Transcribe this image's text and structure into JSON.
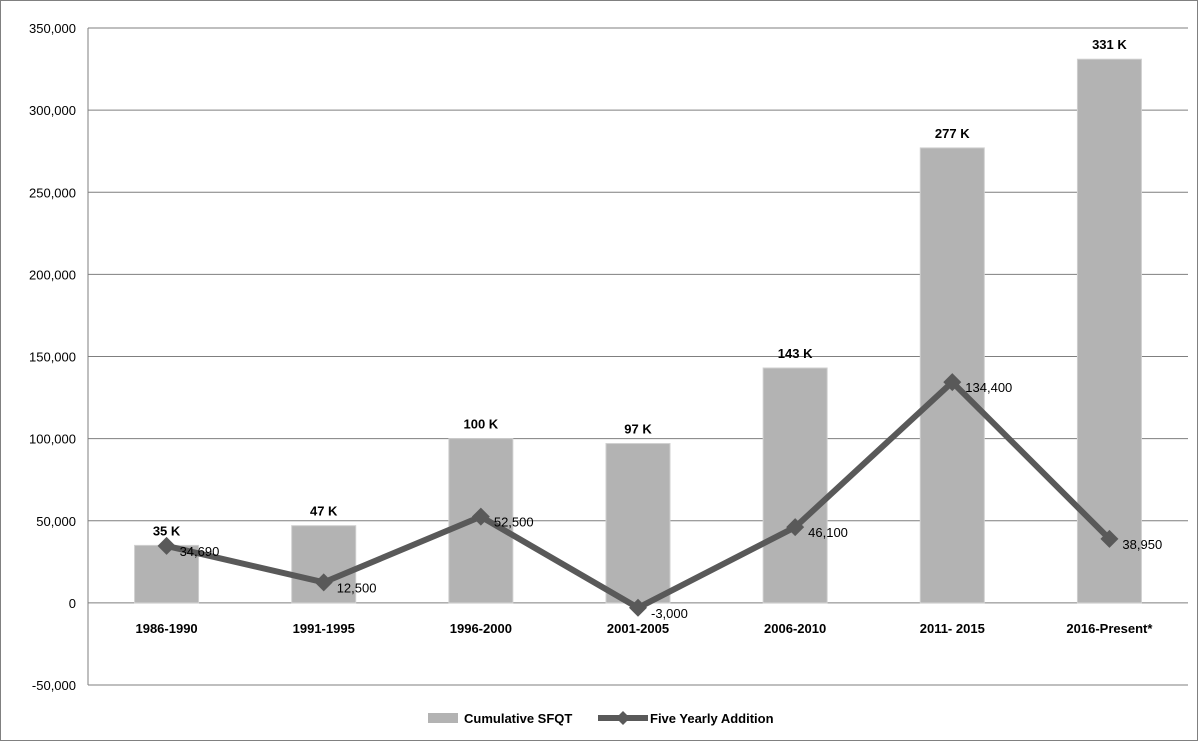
{
  "chart_data": {
    "type": "bar",
    "categories": [
      "1986-1990",
      "1991-1995",
      "1996-2000",
      "2001-2005",
      "2006-2010",
      "2011- 2015",
      "2016-Present*"
    ],
    "series": [
      {
        "name": "Cumulative SFQT",
        "type": "bar",
        "values": [
          35000,
          47000,
          100000,
          97000,
          143000,
          277000,
          331000
        ],
        "labels": [
          "35 K",
          "47 K",
          "100 K",
          "97 K",
          "143 K",
          "277 K",
          "331 K"
        ],
        "color": "#b3b3b3"
      },
      {
        "name": "Five Yearly Addition",
        "type": "line",
        "values": [
          34690,
          12500,
          52500,
          -3000,
          46100,
          134400,
          38950
        ],
        "labels": [
          "34,690",
          "12,500",
          "52,500",
          "-3,000",
          "46,100",
          "134,400",
          "38,950"
        ],
        "color": "#595959"
      }
    ],
    "ylim": [
      -50000,
      350000
    ],
    "yticks": [
      -50000,
      0,
      50000,
      100000,
      150000,
      200000,
      250000,
      300000,
      350000
    ],
    "ytick_labels": [
      "-50,000",
      "0",
      "50,000",
      "100,000",
      "150,000",
      "200,000",
      "250,000",
      "300,000",
      "350,000"
    ],
    "grid": true,
    "legend_position": "bottom",
    "title": "",
    "xlabel": "",
    "ylabel": ""
  }
}
